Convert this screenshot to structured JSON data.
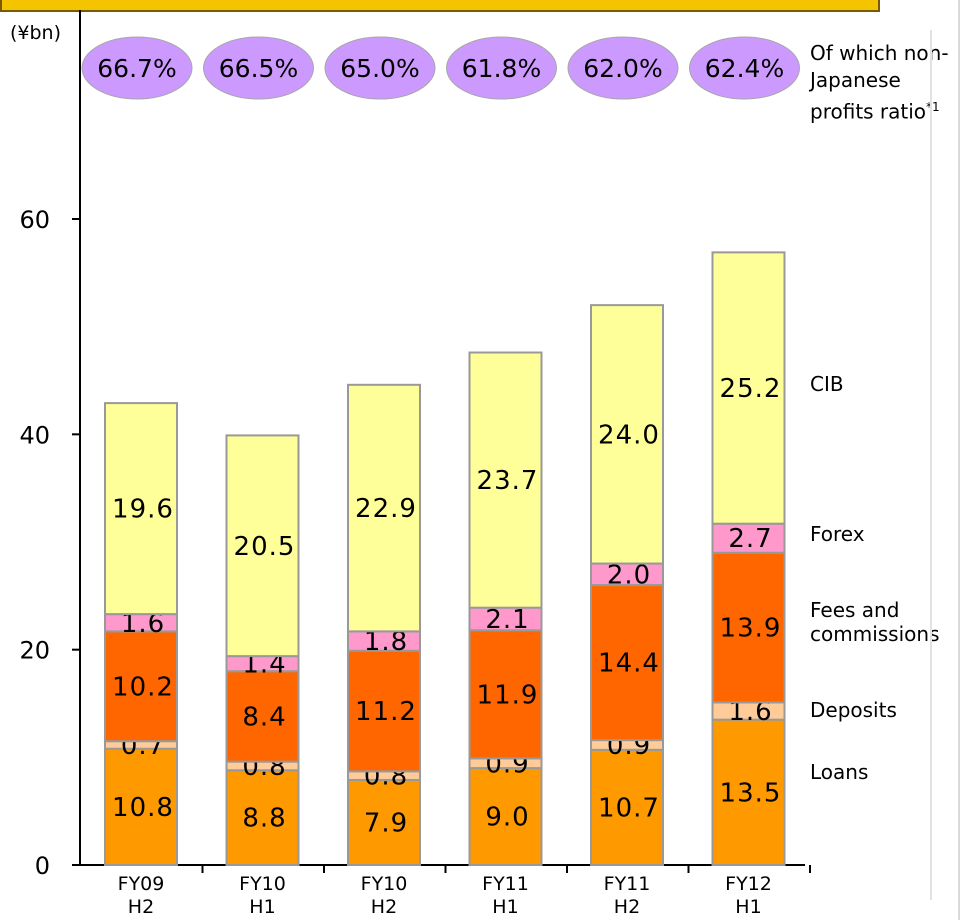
{
  "chart_data": {
    "type": "bar",
    "stacked": true,
    "unit_label": "(¥bn)",
    "ylim": [
      0,
      70
    ],
    "yticks": [
      0,
      20,
      40,
      60
    ],
    "categories": [
      [
        "FY09",
        "H2"
      ],
      [
        "FY10",
        "H1"
      ],
      [
        "FY10",
        "H2"
      ],
      [
        "FY11",
        "H1"
      ],
      [
        "FY11",
        "H2"
      ],
      [
        "FY12",
        "H1"
      ]
    ],
    "series": [
      {
        "name": "Loans",
        "color": "#ff9900",
        "values": [
          10.8,
          8.8,
          7.9,
          9.0,
          10.7,
          13.5
        ]
      },
      {
        "name": "Deposits",
        "color": "#ffcc99",
        "values": [
          0.7,
          0.8,
          0.8,
          0.9,
          0.9,
          1.6
        ]
      },
      {
        "name": "Fees and\ncommissions",
        "color": "#ff6600",
        "values": [
          10.2,
          8.4,
          11.2,
          11.9,
          14.4,
          13.9
        ]
      },
      {
        "name": "Forex",
        "color": "#ff99cc",
        "values": [
          1.6,
          1.4,
          1.8,
          2.1,
          2.0,
          2.7
        ]
      },
      {
        "name": "CIB",
        "color": "#ffff99",
        "values": [
          19.6,
          20.5,
          22.9,
          23.7,
          24.0,
          25.2
        ]
      }
    ],
    "ratio_label": "Of which non-Japanese profits ratio",
    "ratio_footnote": "*1",
    "ratio_color": "#cc99ff",
    "ratios": [
      "66.7%",
      "66.5%",
      "65.0%",
      "61.8%",
      "62.0%",
      "62.4%"
    ]
  }
}
